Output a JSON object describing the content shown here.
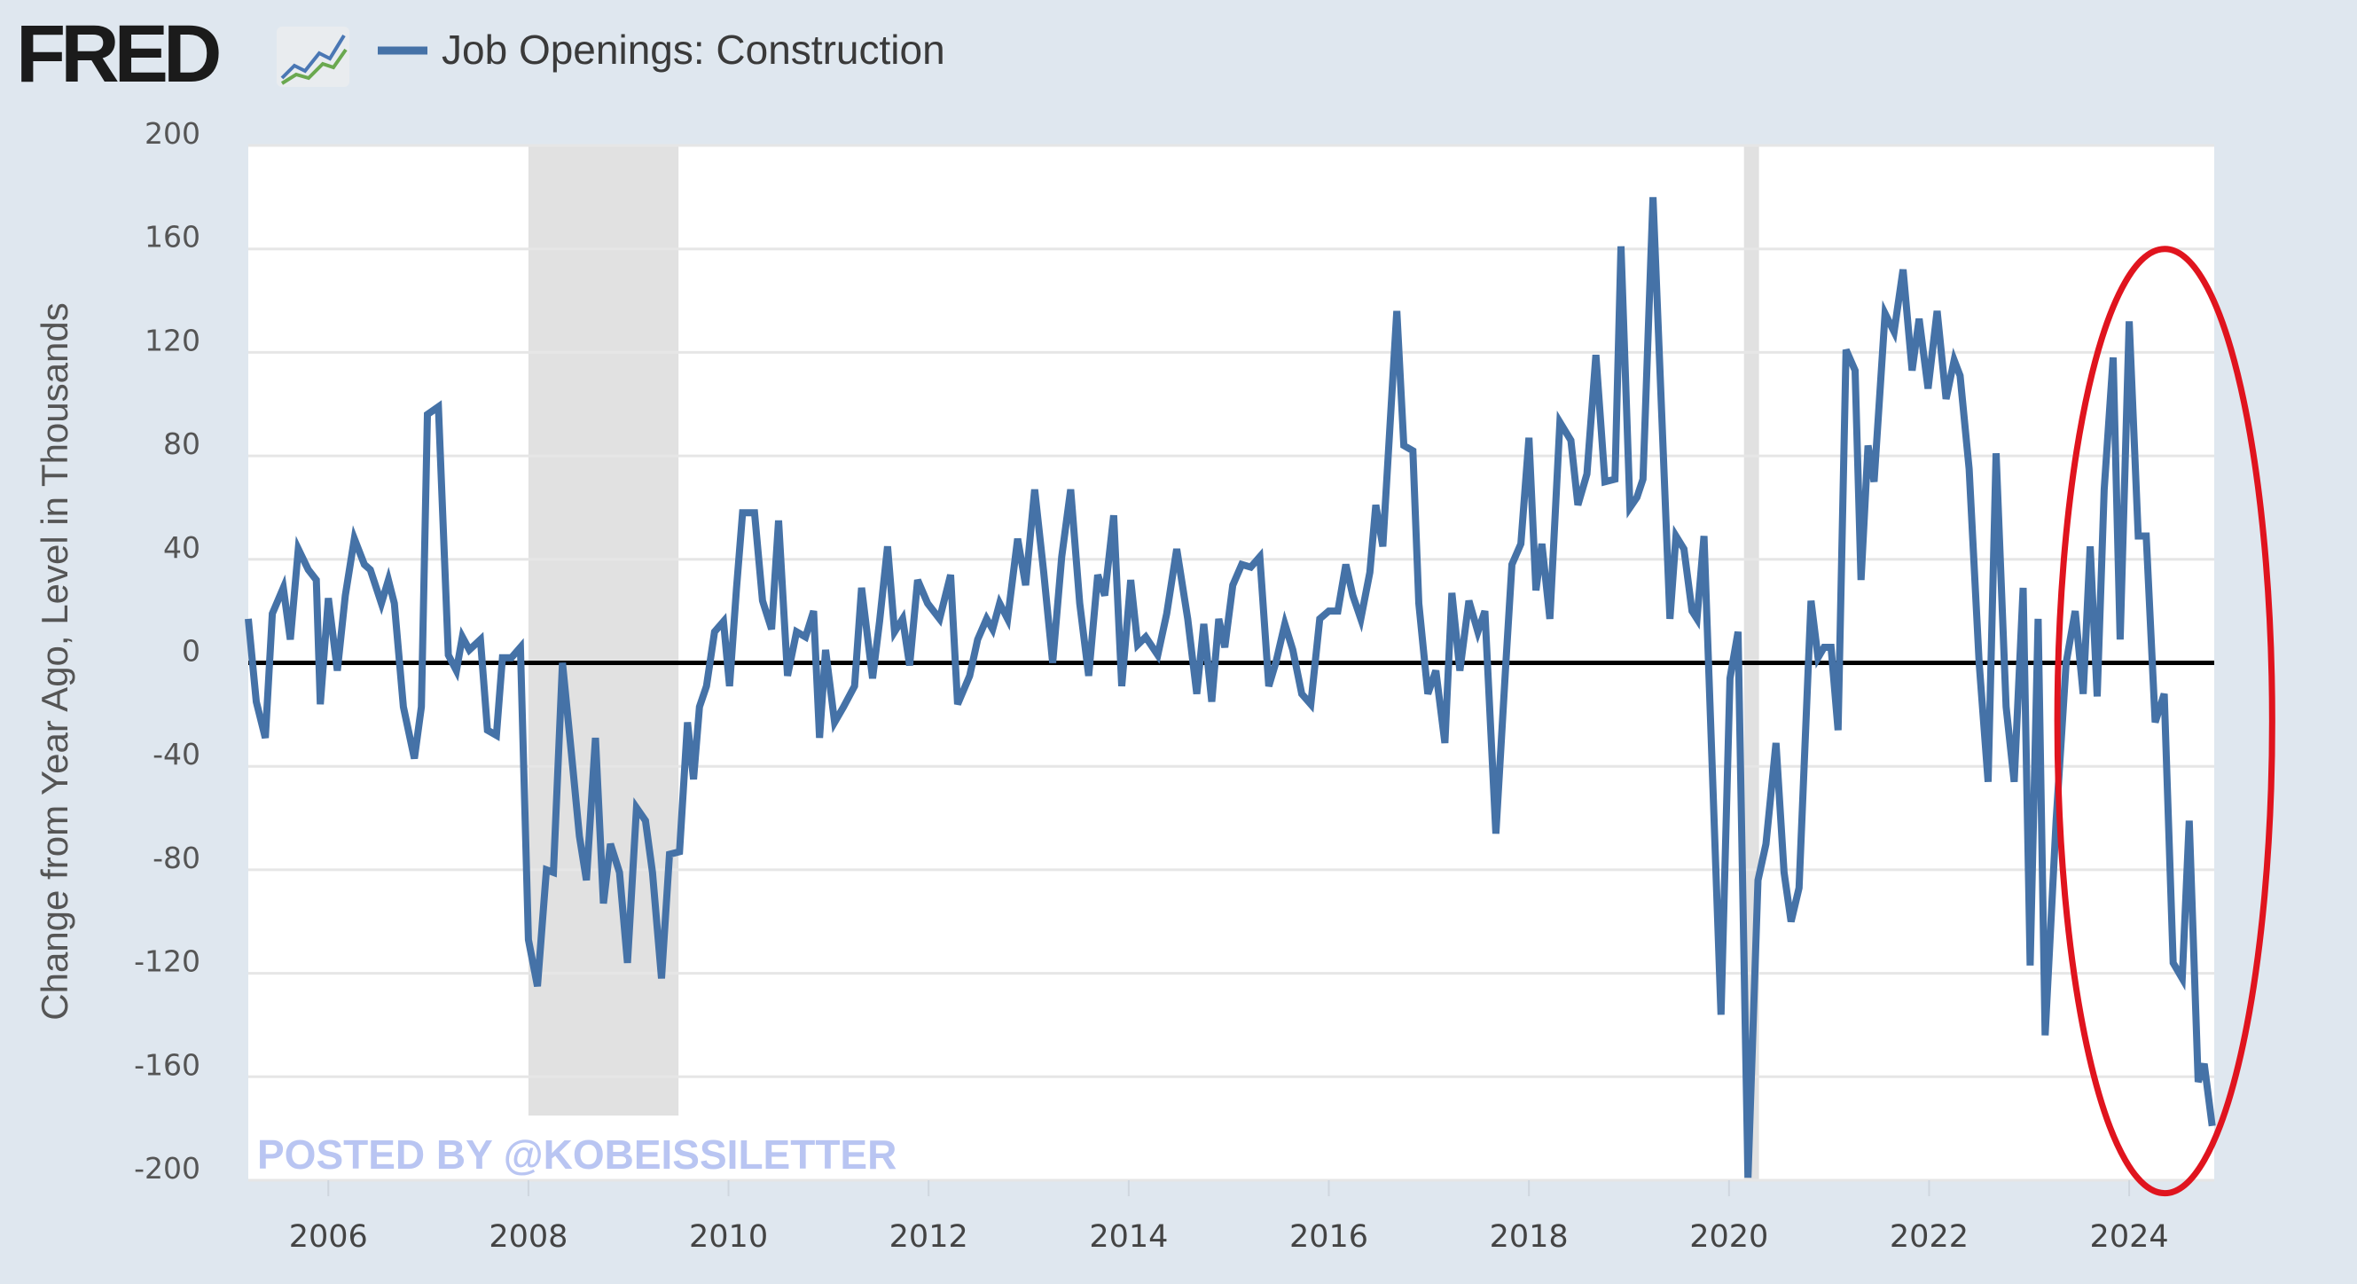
{
  "header": {
    "logo": "FRED",
    "logo_icon": "line-chart-icon",
    "legend_label": "Job Openings: Construction"
  },
  "watermark": "POSTED BY @KOBEISSILETTER",
  "colors": {
    "background": "#dfe7ef",
    "plot": "#ffffff",
    "series": "#4572a7",
    "grid": "#e6e6e6",
    "recession": "#e1e1e1",
    "zero_line": "#000000",
    "highlight": "#e0141e"
  },
  "chart_data": {
    "type": "line",
    "title": "Job Openings: Construction",
    "xlabel": "",
    "ylabel": "Change from Year Ago, Level in Thousands",
    "xlim": [
      2005.2,
      2024.85
    ],
    "ylim": [
      -200,
      200
    ],
    "grid": true,
    "legend": "top-left",
    "yticks": [
      200,
      160,
      120,
      80,
      40,
      0,
      -40,
      -80,
      -120,
      -160,
      -200
    ],
    "ytick_labels": [
      "200",
      "160",
      "120",
      "80",
      "40",
      "0",
      "-40",
      "-80",
      "-120",
      "-160",
      "-200"
    ],
    "xticks": [
      2006,
      2008,
      2010,
      2012,
      2014,
      2016,
      2018,
      2020,
      2022,
      2024
    ],
    "xtick_labels": [
      "2006",
      "2008",
      "2010",
      "2012",
      "2014",
      "2016",
      "2018",
      "2020",
      "2022",
      "2024"
    ],
    "recessions": [
      [
        2008.0,
        2009.5
      ],
      [
        2020.15,
        2020.3
      ]
    ],
    "reference_line": 0,
    "highlight_region": {
      "x": [
        2023.3,
        2025.5
      ],
      "y": [
        -205,
        160
      ]
    },
    "series": [
      {
        "name": "Job Openings: Construction",
        "x": [
          2005.2,
          2005.28,
          2005.37,
          2005.44,
          2005.55,
          2005.62,
          2005.7,
          2005.8,
          2005.88,
          2005.92,
          2006.0,
          2006.09,
          2006.17,
          2006.26,
          2006.36,
          2006.42,
          2006.53,
          2006.6,
          2006.66,
          2006.75,
          2006.86,
          2006.93,
          2006.99,
          2007.1,
          2007.2,
          2007.28,
          2007.34,
          2007.41,
          2007.52,
          2007.59,
          2007.68,
          2007.74,
          2007.83,
          2007.92,
          2008.0,
          2008.09,
          2008.18,
          2008.25,
          2008.34,
          2008.43,
          2008.51,
          2008.58,
          2008.67,
          2008.75,
          2008.82,
          2008.91,
          2008.99,
          2009.08,
          2009.17,
          2009.24,
          2009.33,
          2009.41,
          2009.51,
          2009.59,
          2009.65,
          2009.71,
          2009.78,
          2009.86,
          2009.95,
          2010.01,
          2010.08,
          2010.14,
          2010.26,
          2010.34,
          2010.43,
          2010.5,
          2010.59,
          2010.68,
          2010.77,
          2010.85,
          2010.91,
          2010.97,
          2011.06,
          2011.15,
          2011.26,
          2011.33,
          2011.44,
          2011.51,
          2011.59,
          2011.66,
          2011.74,
          2011.81,
          2011.89,
          2011.99,
          2012.11,
          2012.22,
          2012.29,
          2012.41,
          2012.49,
          2012.58,
          2012.64,
          2012.71,
          2012.79,
          2012.89,
          2012.97,
          2013.06,
          2013.15,
          2013.24,
          2013.33,
          2013.42,
          2013.51,
          2013.6,
          2013.69,
          2013.76,
          2013.85,
          2013.93,
          2014.02,
          2014.09,
          2014.17,
          2014.29,
          2014.38,
          2014.48,
          2014.59,
          2014.68,
          2014.75,
          2014.83,
          2014.9,
          2014.96,
          2015.04,
          2015.13,
          2015.22,
          2015.31,
          2015.4,
          2015.47,
          2015.56,
          2015.64,
          2015.73,
          2015.82,
          2015.91,
          2016.0,
          2016.09,
          2016.17,
          2016.24,
          2016.32,
          2016.41,
          2016.47,
          2016.54,
          2016.68,
          2016.75,
          2016.84,
          2016.9,
          2016.99,
          2017.07,
          2017.16,
          2017.23,
          2017.31,
          2017.4,
          2017.49,
          2017.56,
          2017.67,
          2017.77,
          2017.83,
          2017.92,
          2018.0,
          2018.07,
          2018.13,
          2018.21,
          2018.31,
          2018.42,
          2018.49,
          2018.58,
          2018.67,
          2018.76,
          2018.86,
          2018.92,
          2019.01,
          2019.08,
          2019.14,
          2019.24,
          2019.41,
          2019.47,
          2019.55,
          2019.63,
          2019.68,
          2019.75,
          2019.92,
          2020.01,
          2020.09,
          2020.19,
          2020.29,
          2020.37,
          2020.47,
          2020.55,
          2020.62,
          2020.7,
          2020.82,
          2020.89,
          2020.95,
          2021.02,
          2021.09,
          2021.17,
          2021.26,
          2021.32,
          2021.39,
          2021.45,
          2021.56,
          2021.65,
          2021.74,
          2021.83,
          2021.9,
          2021.99,
          2022.08,
          2022.17,
          2022.25,
          2022.31,
          2022.4,
          2022.5,
          2022.59,
          2022.67,
          2022.77,
          2022.85,
          2022.94,
          2023.01,
          2023.09,
          2023.16,
          2023.27,
          2023.37,
          2023.46,
          2023.54,
          2023.61,
          2023.68,
          2023.75,
          2023.84,
          2023.91,
          2024.0,
          2024.09,
          2024.17,
          2024.26,
          2024.35,
          2024.44,
          2024.53,
          2024.6,
          2024.69,
          2024.75,
          2024.83
        ],
        "values": [
          17,
          -15,
          -29,
          19,
          29,
          9,
          44,
          36,
          32,
          -16,
          25,
          -3,
          26,
          48,
          38,
          36,
          23,
          32,
          23,
          -17,
          -37,
          -17,
          96,
          99,
          3,
          -3,
          10,
          5,
          9,
          -26,
          -28,
          2,
          2,
          6,
          -107,
          -125,
          -80,
          -81,
          0,
          -35,
          -67,
          -84,
          -29,
          -93,
          -70,
          -81,
          -116,
          -56,
          -61,
          -81,
          -122,
          -74,
          -73,
          -23,
          -45,
          -17,
          -9,
          12,
          16,
          -9,
          29,
          58,
          58,
          24,
          13,
          55,
          -5,
          12,
          10,
          20,
          -29,
          5,
          -23,
          -17,
          -9,
          29,
          -6,
          16,
          45,
          12,
          17,
          -1,
          32,
          23,
          17,
          34,
          -16,
          -5,
          9,
          17,
          13,
          23,
          17,
          48,
          30,
          67,
          35,
          0,
          41,
          67,
          23,
          -5,
          34,
          26,
          57,
          -9,
          32,
          7,
          10,
          3,
          19,
          44,
          17,
          -12,
          15,
          -15,
          17,
          6,
          30,
          38,
          37,
          41,
          -9,
          0,
          15,
          5,
          -12,
          -16,
          17,
          20,
          20,
          38,
          26,
          17,
          35,
          61,
          45,
          136,
          84,
          82,
          23,
          -12,
          -3,
          -31,
          27,
          -3,
          24,
          12,
          20,
          -66,
          0,
          38,
          46,
          87,
          28,
          46,
          17,
          93,
          86,
          61,
          73,
          119,
          70,
          71,
          161,
          60,
          64,
          71,
          180,
          17,
          49,
          44,
          20,
          17,
          49,
          -136,
          -6,
          12,
          -199,
          -84,
          -70,
          -31,
          -81,
          -100,
          -87,
          24,
          2,
          6,
          6,
          -26,
          121,
          113,
          32,
          84,
          70,
          135,
          128,
          152,
          113,
          133,
          106,
          136,
          102,
          117,
          111,
          75,
          0,
          -46,
          81,
          -17,
          -46,
          29,
          -117,
          17,
          -144,
          -61,
          0,
          20,
          -12,
          45,
          -13,
          67,
          118,
          9,
          132,
          49,
          49,
          -23,
          -12,
          -116,
          -122,
          -61,
          -162,
          -155,
          -179
        ]
      }
    ],
    "annotations": [
      "POSTED BY @KOBEISSILETTER"
    ]
  }
}
